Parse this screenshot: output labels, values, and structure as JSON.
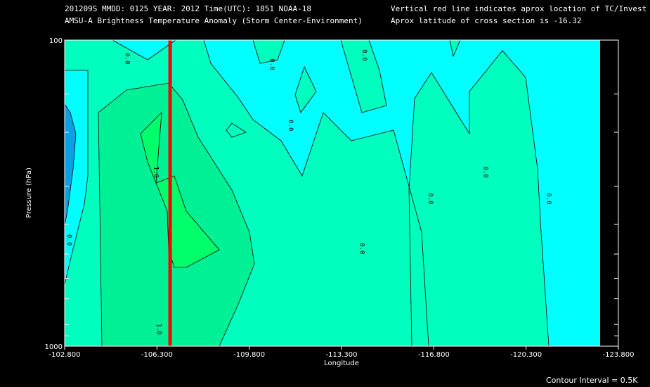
{
  "header": {
    "line1_left": "201209S  MMDD: 0125 YEAR: 2012 Time(UTC): 1851 NOAA-18",
    "line2_left": "AMSU-A Brightness Temperature Anomaly (Storm Center-Environment)",
    "line1_right": "Vertical red line indicates aprox location of TC/Invest",
    "line2_right": "Aprox latitude of cross section is -16.32"
  },
  "footer": {
    "contour_interval": "Contour Interval = 0.5K"
  },
  "chart_data": {
    "type": "heatmap",
    "title": "AMSU-A Brightness Temperature Anomaly (Storm Center-Environment)",
    "xlabel": "Longitude",
    "ylabel": "Pressure (hPa)",
    "x_ticks": [
      "-102.800",
      "-106.300",
      "-109.800",
      "-113.300",
      "-116.800",
      "-120.300",
      "-123.800"
    ],
    "x_range": [
      -102.8,
      -123.8
    ],
    "y_ticks": [
      "100",
      "1000"
    ],
    "y_range": [
      100,
      1000
    ],
    "y_scale": "log",
    "y_minor_ticks": [
      150,
      200,
      300,
      400,
      500,
      600,
      700,
      850,
      925
    ],
    "tc_longitude": -106.8,
    "contour_interval_K": 0.5,
    "contour_levels": [
      -0.5,
      0,
      0.5,
      1.0,
      1.5
    ],
    "contour_labels": [
      {
        "text": "0.0",
        "lon": -105.1,
        "p": 115
      },
      {
        "text": "0.0",
        "lon": -102.9,
        "p": 450
      },
      {
        "text": "1.0",
        "lon": -106.2,
        "p": 270
      },
      {
        "text": "1.0",
        "lon": -106.3,
        "p": 880
      },
      {
        "text": "0.0",
        "lon": -110.6,
        "p": 120
      },
      {
        "text": "0.0",
        "lon": -111.3,
        "p": 190
      },
      {
        "text": "0.0",
        "lon": -114.1,
        "p": 112
      },
      {
        "text": "0.0",
        "lon": -114.0,
        "p": 480
      },
      {
        "text": "0.0",
        "lon": -116.6,
        "p": 330
      },
      {
        "text": "0.0",
        "lon": -118.7,
        "p": 270
      },
      {
        "text": "0.0",
        "lon": -121.1,
        "p": 330
      }
    ],
    "colors": {
      "neg_0_5": "#0aa0e6",
      "neg_0": "#00ffff",
      "pos_0_5": "#00ffbe",
      "pos_1_0": "#00f096",
      "pos_1_5": "#00ff6a",
      "tc_line": "#ff0000",
      "background": "#000000"
    }
  }
}
